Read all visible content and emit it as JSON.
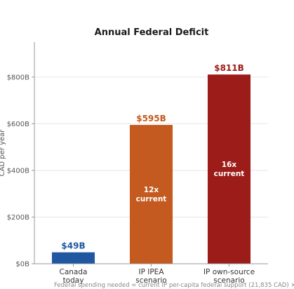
{
  "chart_data": {
    "type": "bar",
    "title": "Annual Federal Deficit",
    "ylabel": "CAD per year",
    "xlabel": "",
    "ylim": [
      0,
      950
    ],
    "yticks": [
      0,
      200,
      400,
      600,
      800
    ],
    "ytick_labels": [
      "$0B",
      "$200B",
      "$400B",
      "$600B",
      "$800B"
    ],
    "grid": "y",
    "categories": [
      [
        "Canada",
        "today"
      ],
      [
        "IP IPEA",
        "scenario"
      ],
      [
        "IP own-source",
        "scenario"
      ]
    ],
    "values": [
      49,
      595,
      811
    ],
    "value_labels": [
      "$49B",
      "$595B",
      "$811B"
    ],
    "inside_labels": [
      [],
      [
        "12x",
        "current"
      ],
      [
        "16x",
        "current"
      ]
    ],
    "colors": [
      "#1f57a1",
      "#c45a20",
      "#9b1c19"
    ],
    "footnote": "Federal spending needed = current IP per-capita federal support (21,835 CAD) ×"
  }
}
